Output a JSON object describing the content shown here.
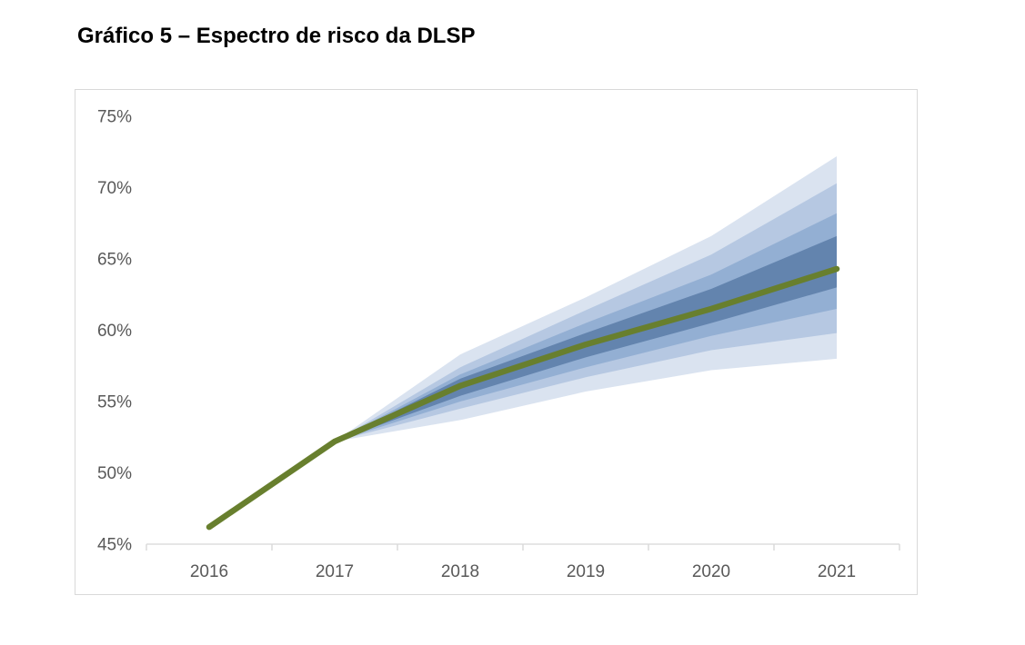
{
  "title": "Gráfico 5 – Espectro de risco da DLSP",
  "chart_data": {
    "type": "area",
    "subtype": "fan-chart",
    "title": "Gráfico 5 – Espectro de risco da DLSP",
    "categories": [
      "2016",
      "2017",
      "2018",
      "2019",
      "2020",
      "2021"
    ],
    "y_ticks": [
      "45%",
      "50%",
      "55%",
      "60%",
      "65%",
      "70%",
      "75%"
    ],
    "ylim": [
      45,
      75
    ],
    "grid": false,
    "legend_position": "none",
    "central_line": {
      "name": "projecao-central-dlsp",
      "color": "#687F2E",
      "values": [
        46.2,
        52.2,
        56.1,
        59.0,
        61.5,
        64.3
      ]
    },
    "bands": [
      {
        "name": "confidence-band-outermost",
        "color": "#DAE3F0",
        "lower": [
          46.2,
          52.2,
          53.7,
          55.7,
          57.2,
          58.0
        ],
        "upper": [
          46.2,
          52.2,
          58.3,
          62.3,
          66.6,
          72.2
        ]
      },
      {
        "name": "confidence-band-outer",
        "color": "#B6C8E2",
        "lower": [
          46.2,
          52.2,
          54.5,
          56.7,
          58.6,
          59.8
        ],
        "upper": [
          46.2,
          52.2,
          57.4,
          61.4,
          65.3,
          70.3
        ]
      },
      {
        "name": "confidence-band-middle",
        "color": "#93AFD3",
        "lower": [
          46.2,
          52.2,
          55.0,
          57.4,
          59.6,
          61.5
        ],
        "upper": [
          46.2,
          52.2,
          56.9,
          60.5,
          63.9,
          68.2
        ]
      },
      {
        "name": "confidence-band-inner",
        "color": "#6384AE",
        "lower": [
          46.2,
          52.2,
          55.4,
          58.1,
          60.5,
          63.0
        ],
        "upper": [
          46.2,
          52.2,
          56.6,
          59.8,
          62.9,
          66.6
        ]
      }
    ],
    "axis": {
      "line_color": "#D6D6D6",
      "label_color": "#595959"
    }
  }
}
